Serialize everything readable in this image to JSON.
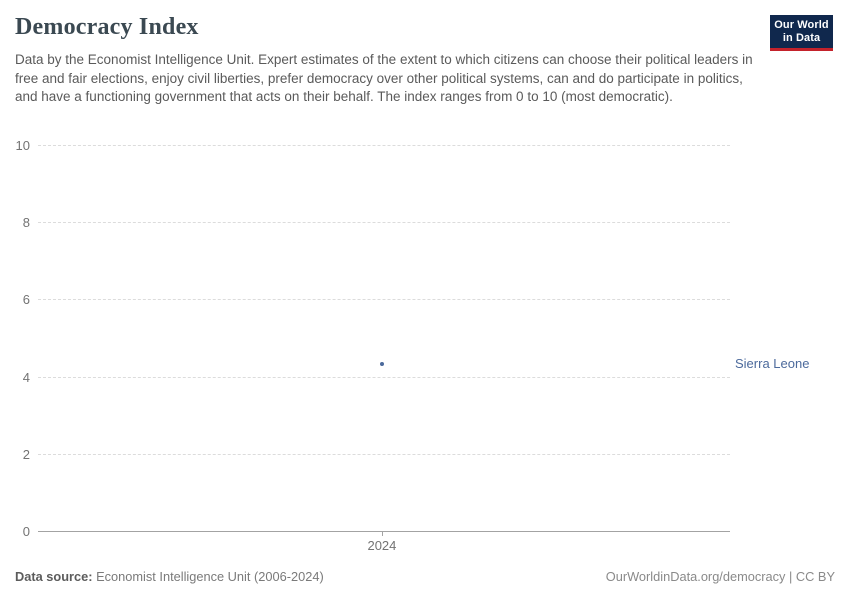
{
  "header": {
    "title": "Democracy Index",
    "subtitle": "Data by the Economist Intelligence Unit. Expert estimates of the extent to which citizens can choose their political leaders in free and fair elections, enjoy civil liberties, prefer democracy over other political systems, can and do participate in politics, and have a functioning government that acts on their behalf. The index ranges from 0 to 10 (most democratic).",
    "logo": {
      "line1": "Our World",
      "line2": "in Data",
      "bg_color": "#10284d",
      "accent_color": "#c4222b"
    }
  },
  "chart_data": {
    "type": "scatter",
    "title": "Democracy Index",
    "series": [
      {
        "name": "Sierra Leone",
        "x": [
          2024
        ],
        "values": [
          4.33
        ],
        "color": "#4c6a9c"
      }
    ],
    "x_ticks": [
      2024
    ],
    "y_ticks": [
      0,
      2,
      4,
      6,
      8,
      10
    ],
    "ylim": [
      0,
      10
    ],
    "xlabel": "",
    "ylabel": "",
    "grid": "horizontal-dashed",
    "legend": "entity-label-right-of-plot"
  },
  "colors": {
    "title": "#3b4952",
    "subtitle": "#5a5a5a",
    "axis_labels": "#737373",
    "gridline": "#dcdcdc",
    "axis_line": "#a3a3a3"
  },
  "footer": {
    "source_label": "Data source:",
    "source_text": "Economist Intelligence Unit (2006-2024)",
    "link_text": "OurWorldinData.org/democracy | CC BY"
  }
}
